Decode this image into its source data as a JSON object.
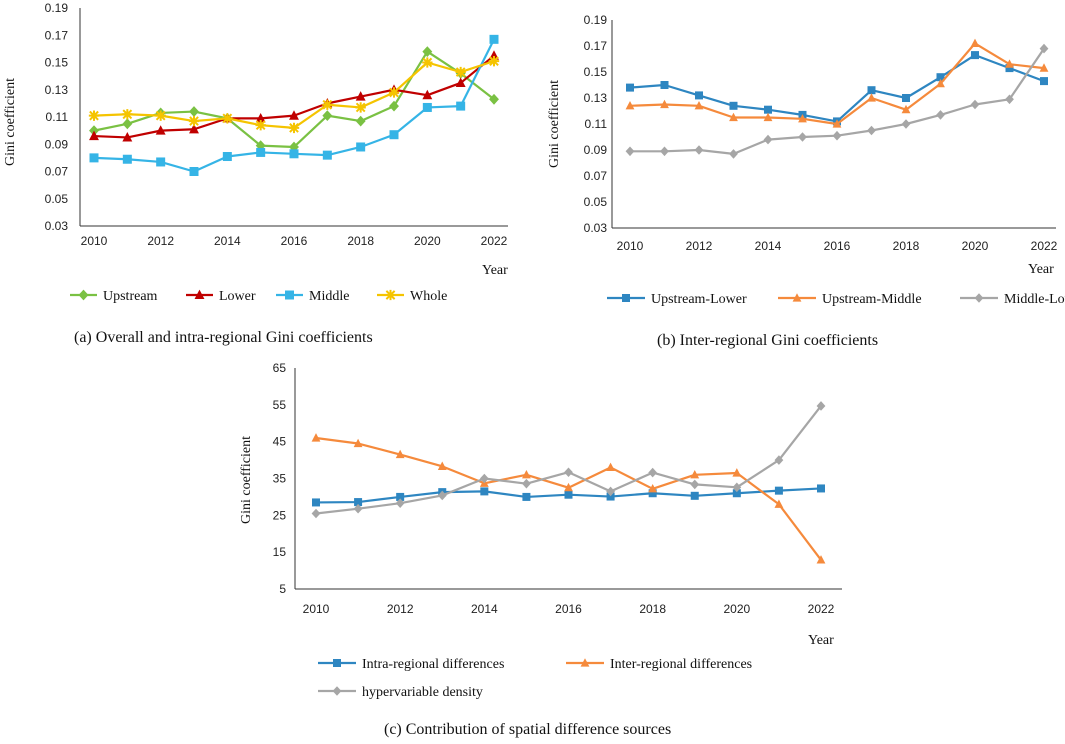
{
  "chart_data": [
    {
      "type": "line",
      "caption": "(a) Overall and intra-regional Gini coefficients",
      "ylabel": "Gini coefficient",
      "xlabel": "Year",
      "x": [
        2010,
        2011,
        2012,
        2013,
        2014,
        2015,
        2016,
        2017,
        2018,
        2019,
        2020,
        2021,
        2022
      ],
      "xticks": [
        "2010",
        "2012",
        "2014",
        "2016",
        "2018",
        "2020",
        "2022"
      ],
      "ylim": [
        0.03,
        0.19
      ],
      "yticks": [
        "0.03",
        "0.05",
        "0.07",
        "0.09",
        "0.11",
        "0.13",
        "0.15",
        "0.17",
        "0.19"
      ],
      "series": [
        {
          "name": "Upstream",
          "color": "#7ac143",
          "marker": "diamond",
          "values": [
            0.1,
            0.105,
            0.113,
            0.114,
            0.109,
            0.089,
            0.088,
            0.111,
            0.107,
            0.118,
            0.158,
            0.142,
            0.123
          ]
        },
        {
          "name": "Lower",
          "color": "#c00000",
          "marker": "triangle",
          "values": [
            0.096,
            0.095,
            0.1,
            0.101,
            0.109,
            0.109,
            0.111,
            0.12,
            0.125,
            0.13,
            0.126,
            0.135,
            0.155
          ]
        },
        {
          "name": "Middle",
          "color": "#35b4e6",
          "marker": "square",
          "values": [
            0.08,
            0.079,
            0.077,
            0.07,
            0.081,
            0.084,
            0.083,
            0.082,
            0.088,
            0.097,
            0.117,
            0.118,
            0.167
          ]
        },
        {
          "name": "Whole",
          "color": "#f5c400",
          "marker": "star",
          "values": [
            0.111,
            0.112,
            0.111,
            0.107,
            0.109,
            0.104,
            0.102,
            0.119,
            0.117,
            0.128,
            0.15,
            0.143,
            0.151
          ]
        }
      ]
    },
    {
      "type": "line",
      "caption": "(b) Inter-regional Gini coefficients",
      "ylabel": "Gini coefficient",
      "xlabel": "Year",
      "x": [
        2010,
        2011,
        2012,
        2013,
        2014,
        2015,
        2016,
        2017,
        2018,
        2019,
        2020,
        2021,
        2022
      ],
      "xticks": [
        "2010",
        "2012",
        "2014",
        "2016",
        "2018",
        "2020",
        "2022"
      ],
      "ylim": [
        0.03,
        0.19
      ],
      "yticks": [
        "0.03",
        "0.05",
        "0.07",
        "0.09",
        "0.11",
        "0.13",
        "0.15",
        "0.17",
        "0.19"
      ],
      "series": [
        {
          "name": "Upstream-Lower",
          "color": "#2e86c1",
          "marker": "square",
          "values": [
            0.138,
            0.14,
            0.132,
            0.124,
            0.121,
            0.117,
            0.112,
            0.136,
            0.13,
            0.146,
            0.163,
            0.153,
            0.143
          ]
        },
        {
          "name": "Upstream-Middle",
          "color": "#f58a3c",
          "marker": "triangle",
          "values": [
            0.124,
            0.125,
            0.124,
            0.115,
            0.115,
            0.114,
            0.11,
            0.13,
            0.121,
            0.141,
            0.172,
            0.156,
            0.153
          ]
        },
        {
          "name": "Middle-Lower",
          "color": "#a6a6a6",
          "marker": "diamond",
          "values": [
            0.089,
            0.089,
            0.09,
            0.087,
            0.098,
            0.1,
            0.101,
            0.105,
            0.11,
            0.117,
            0.125,
            0.129,
            0.168
          ]
        }
      ]
    },
    {
      "type": "line",
      "caption": "(c) Contribution of spatial difference sources",
      "ylabel": "Gini coefficient",
      "xlabel": "Year",
      "x": [
        2010,
        2011,
        2012,
        2013,
        2014,
        2015,
        2016,
        2017,
        2018,
        2019,
        2020,
        2021,
        2022
      ],
      "xticks": [
        "2010",
        "2012",
        "2014",
        "2016",
        "2018",
        "2020",
        "2022"
      ],
      "ylim": [
        5,
        65
      ],
      "yticks": [
        "5",
        "15",
        "25",
        "35",
        "45",
        "55",
        "65"
      ],
      "series": [
        {
          "name": "Intra-regional differences",
          "color": "#2e86c1",
          "marker": "square",
          "values": [
            28.5,
            28.6,
            30.0,
            31.3,
            31.5,
            30.0,
            30.6,
            30.1,
            31.0,
            30.3,
            31.0,
            31.7,
            32.3
          ]
        },
        {
          "name": "Inter-regional differences",
          "color": "#f58a3c",
          "marker": "triangle",
          "values": [
            46.0,
            44.5,
            41.5,
            38.3,
            33.7,
            36.0,
            32.5,
            38.0,
            32.2,
            36.0,
            36.5,
            28.0,
            12.9
          ]
        },
        {
          "name": "hypervariable density",
          "color": "#a6a6a6",
          "marker": "diamond",
          "values": [
            25.5,
            26.8,
            28.3,
            30.4,
            35.0,
            33.6,
            36.7,
            31.5,
            36.6,
            33.4,
            32.6,
            40.0,
            54.7
          ]
        }
      ]
    }
  ]
}
